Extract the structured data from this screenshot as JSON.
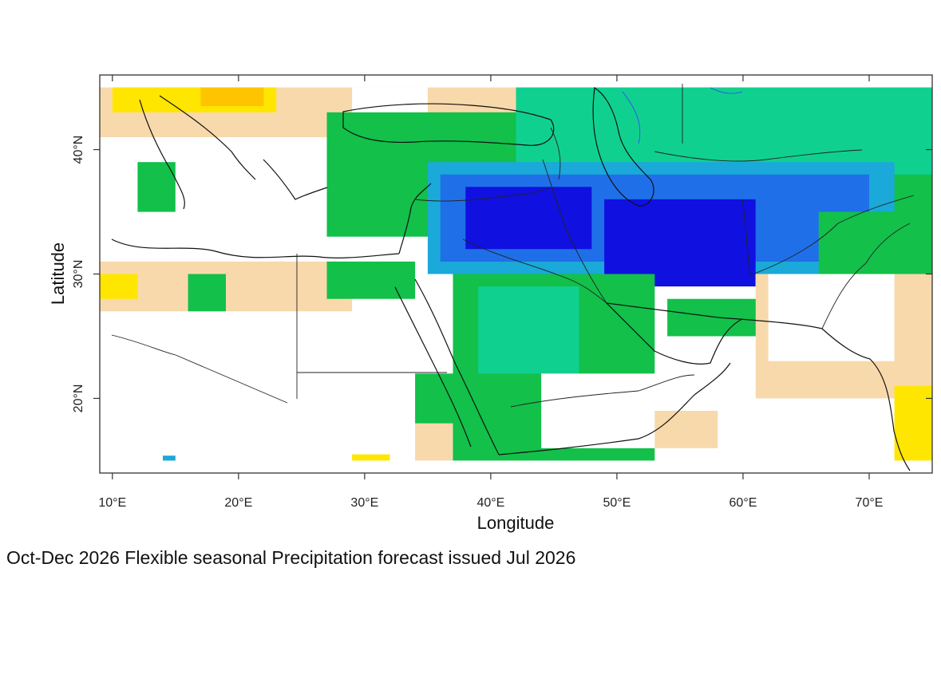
{
  "chart_data": {
    "type": "heatmap",
    "title": "",
    "xlabel": "Longitude",
    "ylabel": "Latitude",
    "xlim": [
      9,
      75
    ],
    "ylim": [
      14,
      46
    ],
    "x_ticks": [
      {
        "value": 10,
        "label": "10°E"
      },
      {
        "value": 20,
        "label": "20°E"
      },
      {
        "value": 30,
        "label": "30°E"
      },
      {
        "value": 40,
        "label": "40°E"
      },
      {
        "value": 50,
        "label": "50°E"
      },
      {
        "value": 60,
        "label": "60°E"
      },
      {
        "value": 70,
        "label": "70°E"
      }
    ],
    "y_ticks": [
      {
        "value": 20,
        "label": "20°N"
      },
      {
        "value": 30,
        "label": "30°N"
      },
      {
        "value": 40,
        "label": "40°N"
      }
    ],
    "category_colors": {
      "wet_strong": "#1010e0",
      "wet_mod": "#1f6fe8",
      "wet": "#1aa9d8",
      "wet_light": "#10d090",
      "wet_weak": "#12c04a",
      "wet_minimal": "#7ad07a",
      "neutral": "#ffffff",
      "dry_weak": "#f8d9ab",
      "dry_mod": "#ffe600",
      "dry_strong": "#ffc400"
    },
    "regions": [
      {
        "category": "dry_weak",
        "lon": [
          9,
          75
        ],
        "lat": [
          41,
          45
        ]
      },
      {
        "category": "dry_mod",
        "lon": [
          10,
          23
        ],
        "lat": [
          43,
          45
        ]
      },
      {
        "category": "dry_strong",
        "lon": [
          17,
          22
        ],
        "lat": [
          43.5,
          45
        ]
      },
      {
        "category": "neutral",
        "lon": [
          29,
          35
        ],
        "lat": [
          42,
          45
        ]
      },
      {
        "category": "neutral",
        "lon": [
          13,
          30
        ],
        "lat": [
          31,
          36
        ]
      },
      {
        "category": "dry_weak",
        "lon": [
          9,
          29
        ],
        "lat": [
          27,
          31
        ]
      },
      {
        "category": "dry_mod",
        "lon": [
          9,
          12
        ],
        "lat": [
          28,
          30
        ]
      },
      {
        "category": "wet_weak",
        "lon": [
          16,
          19
        ],
        "lat": [
          27,
          30
        ]
      },
      {
        "category": "wet_weak",
        "lon": [
          12,
          15
        ],
        "lat": [
          35,
          39
        ]
      },
      {
        "category": "wet_weak",
        "lon": [
          27,
          75
        ],
        "lat": [
          33,
          43
        ]
      },
      {
        "category": "wet_light",
        "lon": [
          42,
          75
        ],
        "lat": [
          38,
          45
        ]
      },
      {
        "category": "wet",
        "lon": [
          35,
          72
        ],
        "lat": [
          30,
          39
        ]
      },
      {
        "category": "wet_mod",
        "lon": [
          36,
          70
        ],
        "lat": [
          31,
          38
        ]
      },
      {
        "category": "wet_strong",
        "lon": [
          38,
          48
        ],
        "lat": [
          32,
          37
        ]
      },
      {
        "category": "wet_strong",
        "lon": [
          49,
          61
        ],
        "lat": [
          29,
          36
        ]
      },
      {
        "category": "wet_weak",
        "lon": [
          27,
          34
        ],
        "lat": [
          28,
          31
        ]
      },
      {
        "category": "wet_weak",
        "lon": [
          37,
          53
        ],
        "lat": [
          15,
          30
        ]
      },
      {
        "category": "wet_light",
        "lon": [
          39,
          47
        ],
        "lat": [
          22,
          29
        ]
      },
      {
        "category": "wet_weak",
        "lon": [
          54,
          62
        ],
        "lat": [
          25,
          28
        ]
      },
      {
        "category": "neutral",
        "lon": [
          44,
          56
        ],
        "lat": [
          16,
          22
        ]
      },
      {
        "category": "dry_weak",
        "lon": [
          61,
          75
        ],
        "lat": [
          20,
          30
        ]
      },
      {
        "category": "neutral",
        "lon": [
          62,
          72
        ],
        "lat": [
          23,
          30
        ]
      },
      {
        "category": "wet_weak",
        "lon": [
          66,
          75
        ],
        "lat": [
          30,
          35
        ]
      },
      {
        "category": "dry_mod",
        "lon": [
          72,
          75
        ],
        "lat": [
          15,
          21
        ]
      },
      {
        "category": "dry_weak",
        "lon": [
          34,
          37
        ],
        "lat": [
          15,
          18
        ]
      },
      {
        "category": "wet_weak",
        "lon": [
          34,
          37
        ],
        "lat": [
          18,
          22
        ]
      },
      {
        "category": "dry_mod",
        "lon": [
          29,
          32
        ],
        "lat": [
          15,
          15.5
        ]
      },
      {
        "category": "wet",
        "lon": [
          14,
          15
        ],
        "lat": [
          15,
          15.4
        ]
      },
      {
        "category": "dry_weak",
        "lon": [
          53,
          58
        ],
        "lat": [
          16,
          19
        ]
      }
    ]
  },
  "caption": "Oct-Dec 2026 Flexible seasonal Precipitation forecast issued Jul 2026"
}
